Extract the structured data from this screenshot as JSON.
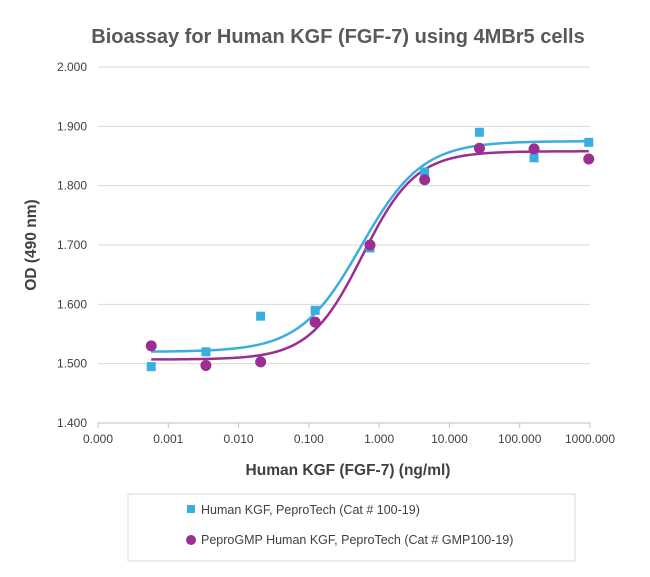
{
  "chart_data": {
    "type": "scatter",
    "title": "Bioassay for Human KGF (FGF-7) using 4MBr5 cells",
    "xlabel": "Human KGF (FGF-7) (ng/ml)",
    "ylabel": "OD (490 nm)",
    "x_scale": "log",
    "x_tick_labels": [
      "0.000",
      "0.001",
      "0.010",
      "0.100",
      "1.000",
      "10.000",
      "100.000",
      "1000.000"
    ],
    "x_tick_values": [
      0.0001,
      0.001,
      0.01,
      0.1,
      1,
      10,
      100,
      1000
    ],
    "xlim": [
      0.0001,
      1000
    ],
    "ylim": [
      1.4,
      2.0
    ],
    "y_ticks": [
      1.4,
      1.5,
      1.6,
      1.7,
      1.8,
      1.9,
      2.0
    ],
    "y_tick_labels": [
      "1.400",
      "1.500",
      "1.600",
      "1.700",
      "1.800",
      "1.900",
      "2.000"
    ],
    "grid": "horizontal",
    "legend_position": "bottom",
    "series": [
      {
        "name": "Human KGF, PeproTech (Cat # 100-19)",
        "marker": "square",
        "color": "#3aaee0",
        "x": [
          0.000572,
          0.00343,
          0.0206,
          0.123,
          0.741,
          4.44,
          26.7,
          160,
          960
        ],
        "y": [
          1.495,
          1.52,
          1.58,
          1.59,
          1.695,
          1.823,
          1.89,
          1.847,
          1.873
        ],
        "fit": {
          "bottom": 1.52,
          "top": 1.875,
          "ec50": 0.55,
          "hill": 1.0
        }
      },
      {
        "name": "PeproGMP Human KGF, PeproTech (Cat # GMP100-19)",
        "marker": "circle",
        "color": "#9b2e91",
        "x": [
          0.000572,
          0.00343,
          0.0206,
          0.123,
          0.741,
          4.44,
          26.7,
          160,
          960
        ],
        "y": [
          1.53,
          1.497,
          1.503,
          1.57,
          1.7,
          1.81,
          1.863,
          1.862,
          1.845
        ],
        "fit": {
          "bottom": 1.507,
          "top": 1.858,
          "ec50": 0.58,
          "hill": 1.15
        }
      }
    ]
  }
}
